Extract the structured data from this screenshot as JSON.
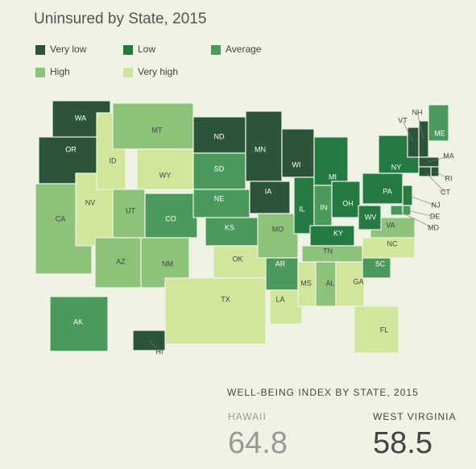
{
  "header": {
    "title": "Uninsured by State, 2015"
  },
  "legend": [
    {
      "name": "Very low",
      "color": "#2c5438"
    },
    {
      "name": "Low",
      "color": "#237a43"
    },
    {
      "name": "Average",
      "color": "#4a9a5e"
    },
    {
      "name": "High",
      "color": "#8cc27a"
    },
    {
      "name": "Very high",
      "color": "#cfe69b"
    }
  ],
  "states": [
    {
      "label": "WA",
      "level": 0
    },
    {
      "label": "OR",
      "level": 0
    },
    {
      "label": "CA",
      "level": 3
    },
    {
      "label": "NV",
      "level": 4
    },
    {
      "label": "ID",
      "level": 4
    },
    {
      "label": "MT",
      "level": 3
    },
    {
      "label": "WY",
      "level": 4
    },
    {
      "label": "UT",
      "level": 3
    },
    {
      "label": "CO",
      "level": 2
    },
    {
      "label": "AZ",
      "level": 3
    },
    {
      "label": "NM",
      "level": 3
    },
    {
      "label": "ND",
      "level": 0
    },
    {
      "label": "SD",
      "level": 2
    },
    {
      "label": "NE",
      "level": 2
    },
    {
      "label": "KS",
      "level": 2
    },
    {
      "label": "OK",
      "level": 4
    },
    {
      "label": "TX",
      "level": 4
    },
    {
      "label": "MN",
      "level": 0
    },
    {
      "label": "IA",
      "level": 0
    },
    {
      "label": "MO",
      "level": 3
    },
    {
      "label": "AR",
      "level": 2
    },
    {
      "label": "LA",
      "level": 4
    },
    {
      "label": "WI",
      "level": 0
    },
    {
      "label": "IL",
      "level": 1
    },
    {
      "label": "MI",
      "level": 1
    },
    {
      "label": "IN",
      "level": 2
    },
    {
      "label": "OH",
      "level": 1
    },
    {
      "label": "KY",
      "level": 1
    },
    {
      "label": "TN",
      "level": 3
    },
    {
      "label": "MS",
      "level": 4
    },
    {
      "label": "AL",
      "level": 3
    },
    {
      "label": "GA",
      "level": 4
    },
    {
      "label": "FL",
      "level": 4
    },
    {
      "label": "SC",
      "level": 2
    },
    {
      "label": "NC",
      "level": 4
    },
    {
      "label": "VA",
      "level": 3
    },
    {
      "label": "WV",
      "level": 1
    },
    {
      "label": "PA",
      "level": 1
    },
    {
      "label": "NY",
      "level": 1
    },
    {
      "label": "VT",
      "level": 0
    },
    {
      "label": "NH",
      "level": 0
    },
    {
      "label": "ME",
      "level": 2
    },
    {
      "label": "MA",
      "level": 0
    },
    {
      "label": "RI",
      "level": 0
    },
    {
      "label": "CT",
      "level": 0
    },
    {
      "label": "NJ",
      "level": 1
    },
    {
      "label": "DE",
      "level": 2
    },
    {
      "label": "MD",
      "level": 2
    },
    {
      "label": "AK",
      "level": 2
    },
    {
      "label": "HI",
      "level": 0
    }
  ],
  "well_being": {
    "title": "WELL-BEING INDEX BY STATE, 2015",
    "items": [
      {
        "state": "HAWAII",
        "value": 64.8
      },
      {
        "state": "WEST VIRGINIA",
        "value": 58.5
      }
    ]
  }
}
